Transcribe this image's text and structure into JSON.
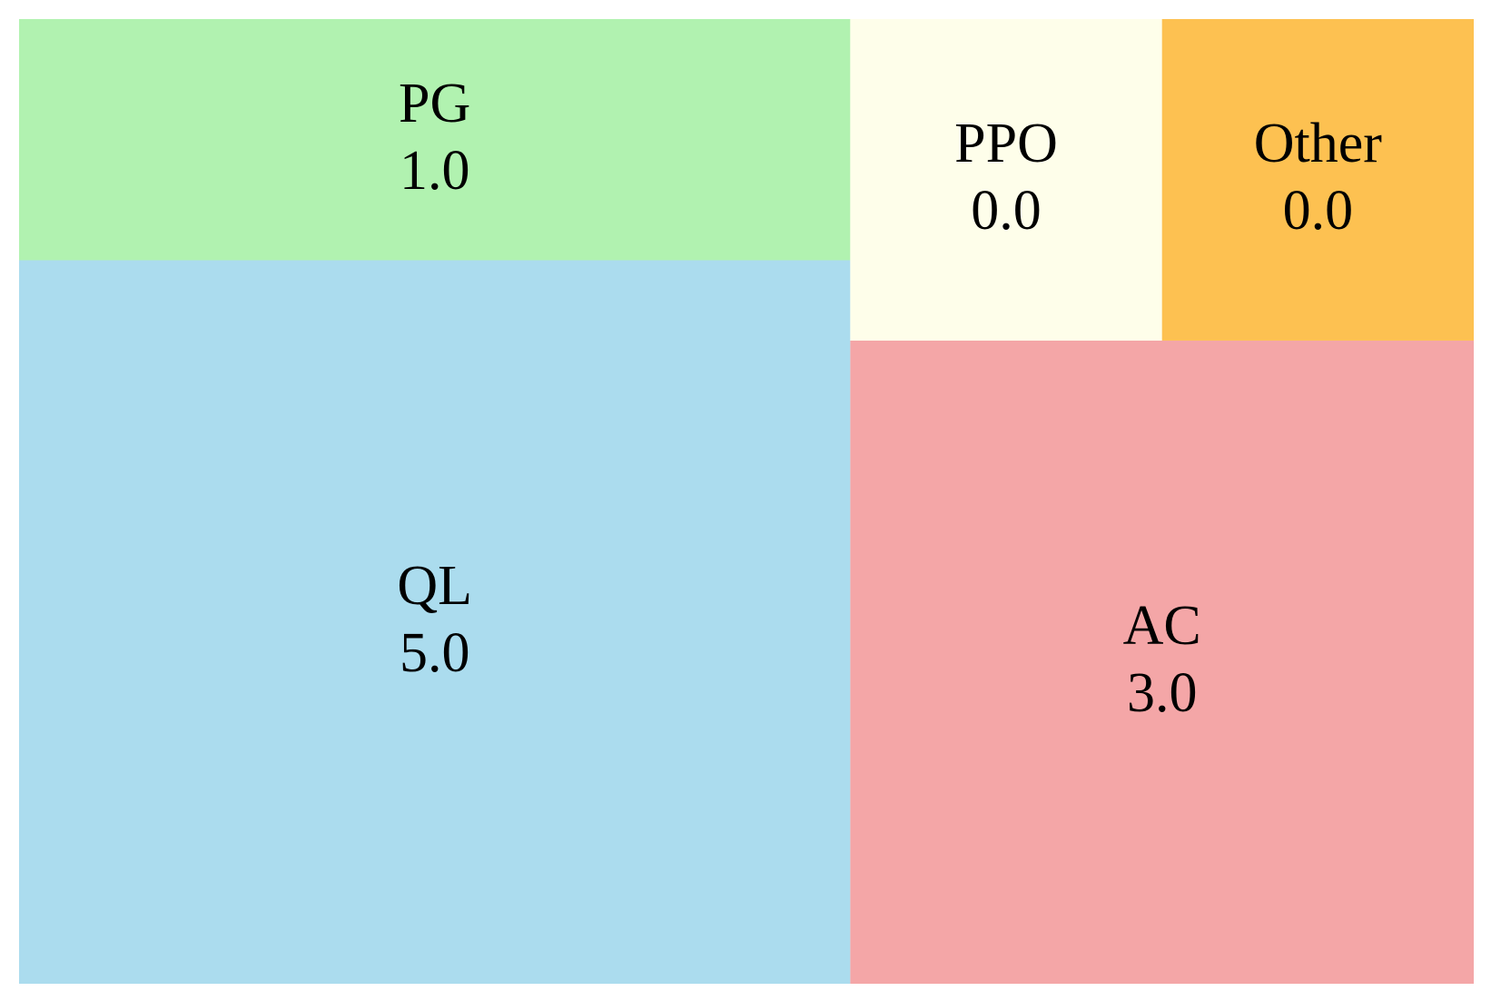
{
  "chart_data": {
    "type": "treemap",
    "categories": [
      "QL",
      "PG",
      "AC",
      "PPO",
      "Other"
    ],
    "values": [
      5,
      1,
      3,
      0,
      0
    ],
    "value_labels": [
      "5.0",
      "1.0",
      "3.0",
      "0.0",
      "0.0"
    ],
    "colors": [
      "#abdcee",
      "#b1f2b0",
      "#f4a6a7",
      "#fefeea",
      "#fdc151"
    ]
  }
}
